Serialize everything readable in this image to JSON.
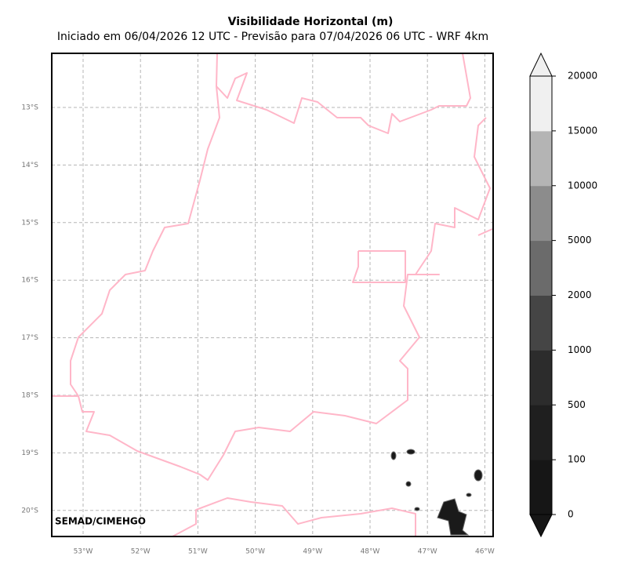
{
  "map": {
    "title": "Visibilidade Horizontal (m)",
    "subtitle": "Iniciado em 06/04/2026 12 UTC - Previsão para 07/04/2026 06 UTC - WRF 4km",
    "lat_labels": [
      "13°S",
      "14°S",
      "15°S",
      "16°S",
      "17°S",
      "18°S",
      "19°S",
      "20°S"
    ],
    "lon_labels": [
      "53°W",
      "52°W",
      "51°W",
      "50°W",
      "49°W",
      "48°W",
      "47°W",
      "46°W"
    ],
    "credit": "SEMAD/CIMEHGO"
  },
  "colorbar": {
    "levels": [
      0,
      100,
      500,
      1000,
      2000,
      5000,
      10000,
      15000,
      20000
    ],
    "colors": [
      "#161616",
      "#1f1f1f",
      "#2c2c2c",
      "#454545",
      "#6b6b6b",
      "#8c8c8c",
      "#b4b4b4",
      "#f0f0f0"
    ]
  }
}
